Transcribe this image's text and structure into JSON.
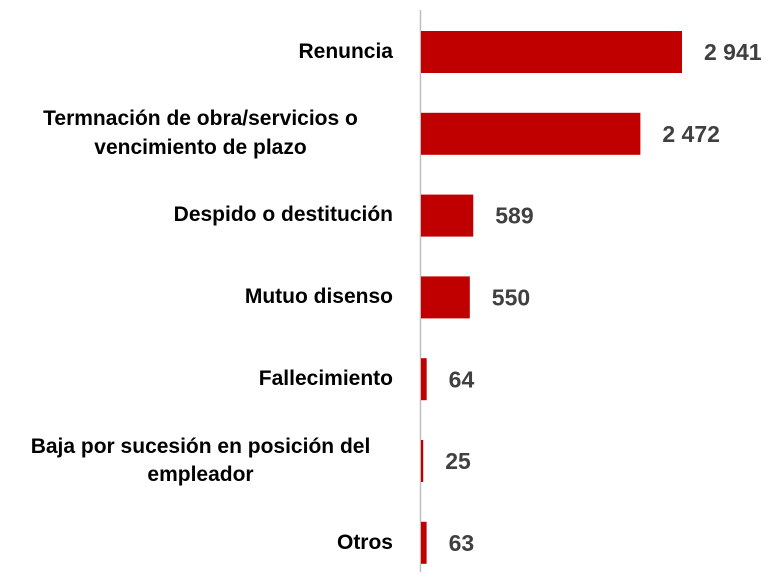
{
  "chart_data": {
    "type": "bar",
    "orientation": "horizontal",
    "categories": [
      "Renuncia",
      "Termnación de obra/servicios o vencimiento de plazo",
      "Despido o destitución",
      "Mutuo disenso",
      "Fallecimiento",
      "Baja por sucesión en posición del empleador",
      "Otros"
    ],
    "values": [
      2941,
      2472,
      589,
      550,
      64,
      25,
      63
    ],
    "value_labels": [
      "2 941",
      "2 472",
      "589",
      "550",
      "64",
      "25",
      "63"
    ],
    "color": "#c00000"
  }
}
